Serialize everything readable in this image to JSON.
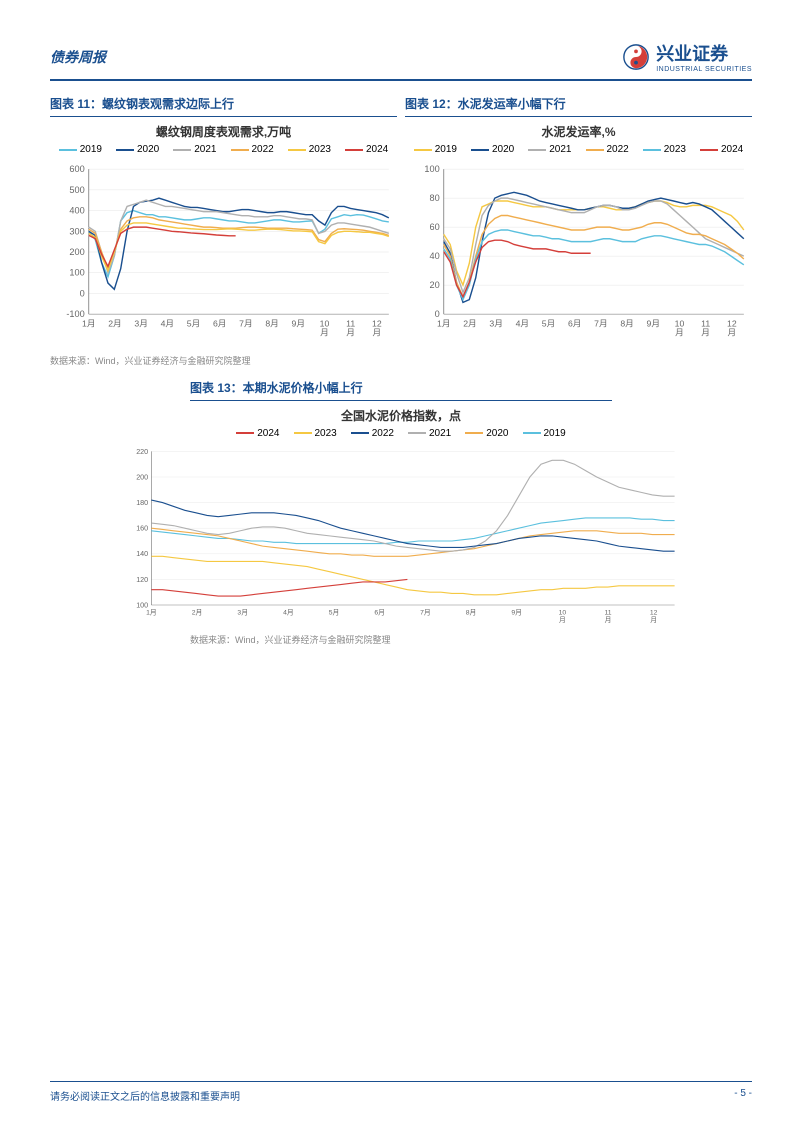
{
  "header": {
    "report_type": "债券周报",
    "logo_cn": "兴业证券",
    "logo_en": "INDUSTRIAL SECURITIES"
  },
  "colors": {
    "brand": "#1a4f8f",
    "y2019": "#5bc0de",
    "y2020": "#1a4f8f",
    "y2021": "#b0b0b0",
    "y2022": "#f0ad4e",
    "y2023": "#f5c842",
    "y2024": "#d43f3a",
    "y2019_alt": "#f5c842",
    "y2020_big": "#f0ad4e",
    "y2021_big": "#b0b0b0",
    "y2022_big": "#1a4f8f",
    "y2023_big": "#f5c842",
    "y2024_big": "#d43f3a",
    "y2019_big": "#5bc0de",
    "grid": "#d0d0d0",
    "axis": "#666666",
    "text": "#333333",
    "source_text": "#888888"
  },
  "chart11": {
    "type": "line",
    "title": "图表 11：螺纹钢表观需求边际上行",
    "subtitle": "螺纹钢周度表观需求,万吨",
    "legend_years": [
      "2019",
      "2020",
      "2021",
      "2022",
      "2023",
      "2024"
    ],
    "legend_colors": [
      "#5bc0de",
      "#1a4f8f",
      "#b0b0b0",
      "#f0ad4e",
      "#f5c842",
      "#d43f3a"
    ],
    "x_labels": [
      "1月",
      "2月",
      "3月",
      "4月",
      "5月",
      "6月",
      "7月",
      "8月",
      "9月",
      "10月",
      "11月",
      "12月"
    ],
    "ylim": [
      -100,
      600
    ],
    "ytick_step": 100,
    "series": {
      "2019": [
        300,
        260,
        150,
        80,
        180,
        350,
        390,
        400,
        390,
        380,
        380,
        370,
        370,
        365,
        360,
        355,
        355,
        360,
        365,
        365,
        360,
        355,
        350,
        350,
        345,
        340,
        340,
        345,
        350,
        355,
        355,
        350,
        345,
        345,
        348,
        350,
        290,
        310,
        360,
        370,
        380,
        375,
        380,
        378,
        370,
        360,
        350,
        345
      ],
      "2020": [
        300,
        280,
        150,
        50,
        20,
        120,
        300,
        420,
        440,
        445,
        450,
        460,
        450,
        440,
        430,
        420,
        415,
        415,
        410,
        405,
        400,
        395,
        395,
        400,
        405,
        405,
        400,
        395,
        390,
        390,
        395,
        395,
        390,
        385,
        380,
        380,
        350,
        330,
        390,
        420,
        420,
        410,
        405,
        400,
        395,
        390,
        380,
        365
      ],
      "2021": [
        320,
        300,
        200,
        100,
        180,
        350,
        420,
        430,
        440,
        450,
        440,
        430,
        420,
        420,
        415,
        410,
        405,
        400,
        395,
        395,
        395,
        390,
        385,
        380,
        375,
        375,
        370,
        370,
        370,
        375,
        375,
        370,
        365,
        360,
        360,
        355,
        290,
        300,
        330,
        340,
        340,
        335,
        330,
        325,
        320,
        310,
        300,
        290
      ],
      "2022": [
        310,
        290,
        200,
        120,
        200,
        310,
        350,
        365,
        370,
        370,
        365,
        355,
        350,
        345,
        340,
        335,
        330,
        325,
        320,
        320,
        318,
        315,
        315,
        315,
        318,
        320,
        320,
        318,
        315,
        315,
        315,
        315,
        312,
        310,
        308,
        305,
        260,
        250,
        290,
        310,
        312,
        310,
        308,
        305,
        300,
        295,
        290,
        280
      ],
      "2023": [
        290,
        270,
        180,
        110,
        200,
        300,
        330,
        340,
        340,
        340,
        335,
        330,
        325,
        320,
        315,
        315,
        312,
        310,
        308,
        308,
        308,
        310,
        312,
        310,
        308,
        305,
        305,
        308,
        310,
        310,
        308,
        305,
        302,
        302,
        300,
        298,
        250,
        240,
        280,
        295,
        300,
        300,
        298,
        295,
        295,
        290,
        285,
        275
      ],
      "2024": [
        280,
        265,
        190,
        130,
        210,
        290,
        310,
        320,
        320,
        320,
        315,
        310,
        305,
        300,
        298,
        295,
        292,
        290,
        288,
        285,
        282,
        280,
        278,
        278
      ]
    }
  },
  "chart12": {
    "type": "line",
    "title": "图表 12：水泥发运率小幅下行",
    "subtitle": "水泥发运率,%",
    "legend_years": [
      "2019",
      "2020",
      "2021",
      "2022",
      "2023",
      "2024"
    ],
    "legend_colors": [
      "#f5c842",
      "#1a4f8f",
      "#b0b0b0",
      "#f0ad4e",
      "#5bc0de",
      "#d43f3a"
    ],
    "x_labels": [
      "1月",
      "2月",
      "3月",
      "4月",
      "5月",
      "6月",
      "7月",
      "8月",
      "9月",
      "10月",
      "11月",
      "12月"
    ],
    "ylim": [
      0,
      100
    ],
    "ytick_step": 20,
    "series": {
      "2019": [
        55,
        48,
        30,
        20,
        35,
        60,
        74,
        76,
        78,
        78,
        78,
        77,
        76,
        75,
        74,
        74,
        74,
        73,
        72,
        72,
        72,
        72,
        72,
        73,
        74,
        74,
        73,
        72,
        72,
        73,
        74,
        76,
        77,
        78,
        78,
        77,
        75,
        74,
        74,
        75,
        75,
        75,
        74,
        72,
        70,
        68,
        64,
        58
      ],
      "2020": [
        50,
        42,
        22,
        8,
        10,
        25,
        50,
        70,
        80,
        82,
        83,
        84,
        83,
        82,
        80,
        78,
        77,
        76,
        75,
        74,
        73,
        72,
        72,
        73,
        74,
        75,
        75,
        74,
        73,
        73,
        74,
        76,
        78,
        79,
        80,
        79,
        78,
        77,
        76,
        77,
        76,
        74,
        72,
        68,
        64,
        60,
        56,
        52
      ],
      "2021": [
        52,
        45,
        28,
        15,
        25,
        48,
        68,
        75,
        78,
        80,
        80,
        79,
        78,
        77,
        76,
        75,
        74,
        73,
        72,
        71,
        70,
        70,
        70,
        72,
        74,
        75,
        75,
        74,
        72,
        72,
        73,
        75,
        77,
        78,
        78,
        76,
        72,
        68,
        64,
        60,
        56,
        52,
        50,
        48,
        46,
        44,
        42,
        40
      ],
      "2022": [
        48,
        40,
        22,
        12,
        22,
        40,
        55,
        62,
        66,
        68,
        68,
        67,
        66,
        65,
        64,
        63,
        62,
        61,
        60,
        59,
        58,
        58,
        58,
        59,
        60,
        60,
        60,
        59,
        58,
        58,
        59,
        60,
        62,
        63,
        63,
        62,
        60,
        58,
        56,
        55,
        55,
        54,
        52,
        50,
        48,
        45,
        42,
        38
      ],
      "2023": [
        45,
        38,
        20,
        10,
        20,
        38,
        50,
        55,
        57,
        58,
        58,
        57,
        56,
        55,
        54,
        54,
        53,
        52,
        52,
        51,
        50,
        50,
        50,
        50,
        51,
        52,
        52,
        51,
        50,
        50,
        50,
        52,
        53,
        54,
        54,
        53,
        52,
        51,
        50,
        49,
        48,
        48,
        47,
        45,
        43,
        40,
        37,
        34
      ],
      "2024": [
        43,
        36,
        20,
        12,
        22,
        36,
        46,
        50,
        51,
        51,
        50,
        48,
        47,
        46,
        45,
        45,
        45,
        44,
        43,
        43,
        42,
        42,
        42,
        42
      ]
    }
  },
  "chart13": {
    "type": "line",
    "title": "图表 13：本期水泥价格小幅上行",
    "subtitle": "全国水泥价格指数，点",
    "legend_years": [
      "2024",
      "2023",
      "2022",
      "2021",
      "2020",
      "2019"
    ],
    "legend_colors": [
      "#d43f3a",
      "#f5c842",
      "#1a4f8f",
      "#b0b0b0",
      "#f0ad4e",
      "#5bc0de"
    ],
    "x_labels": [
      "1月",
      "2月",
      "3月",
      "4月",
      "5月",
      "6月",
      "7月",
      "8月",
      "9月",
      "10月",
      "11月",
      "12月"
    ],
    "ylim": [
      100,
      220
    ],
    "ytick_step": 20,
    "series": {
      "2024": [
        112,
        112,
        111,
        110,
        109,
        108,
        107,
        107,
        107,
        108,
        109,
        110,
        111,
        112,
        113,
        114,
        115,
        116,
        117,
        118,
        118,
        118,
        119,
        120
      ],
      "2023": [
        138,
        138,
        137,
        136,
        135,
        134,
        134,
        134,
        134,
        134,
        134,
        133,
        132,
        131,
        130,
        128,
        126,
        124,
        122,
        120,
        118,
        116,
        114,
        112,
        111,
        110,
        110,
        109,
        109,
        108,
        108,
        108,
        109,
        110,
        111,
        112,
        112,
        113,
        113,
        113,
        114,
        114,
        115,
        115,
        115,
        115,
        115,
        115
      ],
      "2022": [
        182,
        180,
        177,
        174,
        172,
        170,
        169,
        170,
        171,
        172,
        172,
        172,
        171,
        170,
        168,
        166,
        163,
        160,
        158,
        156,
        154,
        152,
        150,
        148,
        147,
        146,
        145,
        145,
        145,
        146,
        147,
        148,
        150,
        152,
        153,
        154,
        154,
        153,
        152,
        151,
        150,
        148,
        146,
        145,
        144,
        143,
        142,
        142
      ],
      "2021": [
        164,
        163,
        162,
        160,
        158,
        156,
        155,
        156,
        158,
        160,
        161,
        161,
        160,
        158,
        156,
        155,
        154,
        153,
        152,
        151,
        150,
        148,
        146,
        145,
        144,
        143,
        142,
        142,
        143,
        145,
        150,
        158,
        170,
        185,
        200,
        210,
        213,
        213,
        210,
        205,
        200,
        196,
        192,
        190,
        188,
        186,
        185,
        185
      ],
      "2020": [
        160,
        159,
        158,
        157,
        156,
        155,
        154,
        152,
        150,
        148,
        146,
        145,
        144,
        143,
        142,
        141,
        140,
        140,
        139,
        139,
        138,
        138,
        138,
        138,
        139,
        140,
        141,
        142,
        143,
        144,
        146,
        148,
        150,
        152,
        154,
        155,
        156,
        157,
        158,
        158,
        158,
        157,
        156,
        156,
        156,
        155,
        155,
        155
      ],
      "2019": [
        158,
        157,
        156,
        155,
        154,
        153,
        152,
        152,
        151,
        150,
        150,
        149,
        149,
        148,
        148,
        148,
        148,
        148,
        148,
        148,
        148,
        148,
        149,
        149,
        150,
        150,
        150,
        150,
        151,
        152,
        154,
        156,
        158,
        160,
        162,
        164,
        165,
        166,
        167,
        168,
        168,
        168,
        168,
        168,
        167,
        167,
        166,
        166
      ]
    }
  },
  "source": "数据来源：Wind，兴业证券经济与金融研究院整理",
  "footer": {
    "disclaimer": "请务必阅读正文之后的信息披露和重要声明",
    "page_num": "- 5 -"
  }
}
